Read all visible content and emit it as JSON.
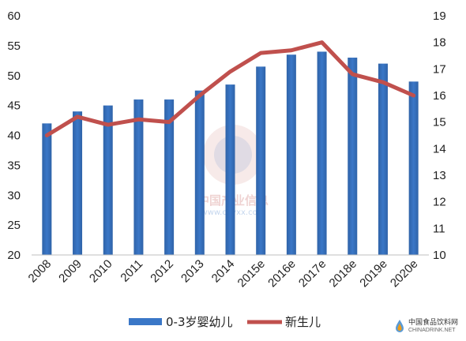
{
  "chart_data": {
    "type": "bar",
    "categories": [
      "2008",
      "2009",
      "2010",
      "2011",
      "2012",
      "2013",
      "2014",
      "2015e",
      "2016e",
      "2017e",
      "2018e",
      "2019e",
      "2020e"
    ],
    "series": [
      {
        "name": "0-3岁婴幼儿",
        "type": "bar",
        "axis": "left",
        "color": "#3a77c7",
        "values": [
          42,
          44,
          45,
          46,
          46,
          47.5,
          48.5,
          51.5,
          53.5,
          54,
          53,
          52,
          49
        ]
      },
      {
        "name": "新生儿",
        "type": "line",
        "axis": "right",
        "color": "#c0504d",
        "values": [
          14.5,
          15.2,
          14.9,
          15.1,
          15.0,
          16.0,
          16.9,
          17.6,
          17.7,
          18.0,
          16.8,
          16.5,
          16.0
        ]
      }
    ],
    "ylim_left": [
      20,
      60
    ],
    "yticks_left": [
      "20",
      "25",
      "30",
      "35",
      "40",
      "45",
      "50",
      "55",
      "60"
    ],
    "ylim_right": [
      10,
      19
    ],
    "yticks_right": [
      "10",
      "11",
      "12",
      "13",
      "14",
      "15",
      "16",
      "17",
      "18",
      "19"
    ],
    "legend_position": "bottom",
    "grid": false
  },
  "watermark": {
    "text": "中国产业信息",
    "url": "www.chyxx.com"
  },
  "corner_logo": {
    "text": "中国食品饮料网",
    "url": "CHINADRINK.NET"
  }
}
